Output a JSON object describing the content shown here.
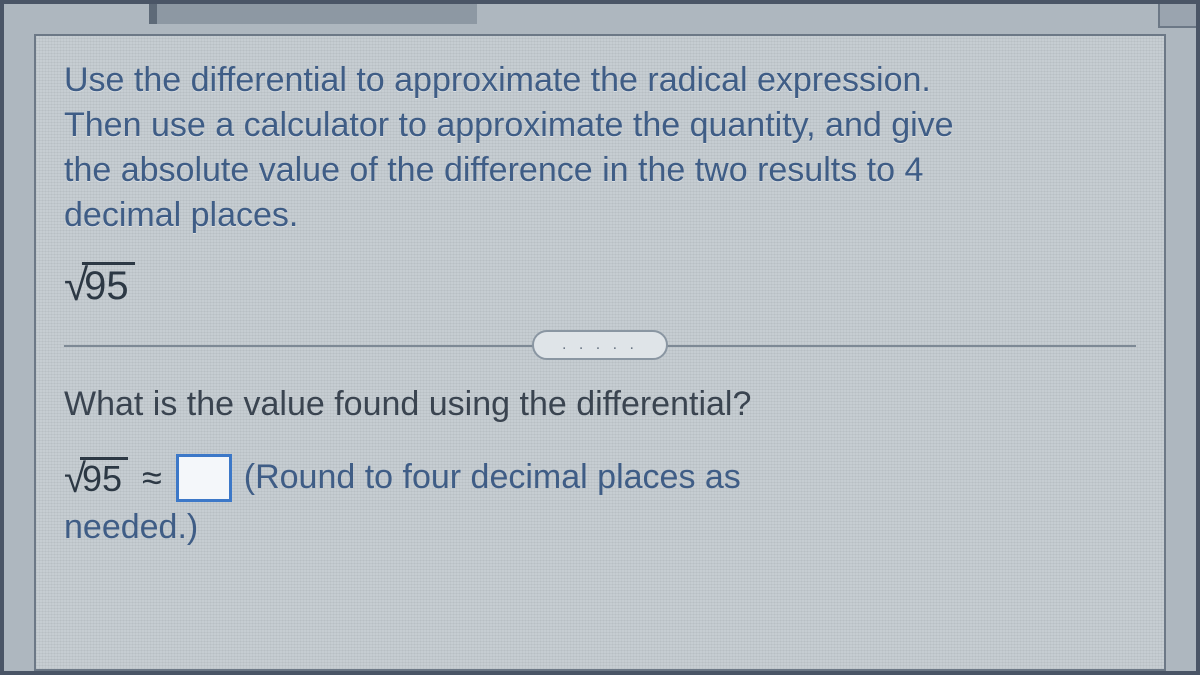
{
  "panel": {
    "background_color": "#c6cdd2",
    "border_color": "#6c7886",
    "text_color": "#3f5d86",
    "body_text_color": "#3a4450",
    "math_color": "#2c3844",
    "input_border_color": "#3c78c8",
    "font_size_pt": 26
  },
  "problem": {
    "instructions": "Use the differential to approximate the radical expression. Then use a calculator to approximate the quantity, and give the absolute value of the difference in the two results to 4 decimal places.",
    "radicand": "95",
    "sqrt_symbol": "√"
  },
  "divider": {
    "dots": ". . . . ."
  },
  "question": {
    "prompt": "What is the value found using the differential?",
    "answer_radicand": "95",
    "approx_symbol": "≈",
    "hint_part1": "(Round to four decimal places as",
    "hint_part2": "needed.)",
    "answer_value": ""
  }
}
